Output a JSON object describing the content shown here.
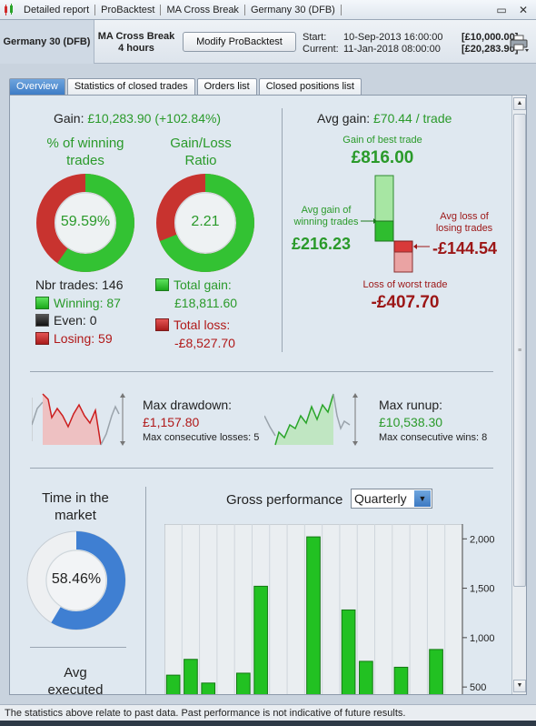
{
  "titlebar": {
    "segments": [
      "Detailed report",
      "ProBacktest",
      "MA Cross Break",
      "Germany 30 (DFB)"
    ],
    "icons": {
      "app": "candlestick-chart-icon",
      "minimize": "minimize-icon",
      "close": "close-icon"
    }
  },
  "header": {
    "instrument": "Germany 30 (DFB)",
    "strategy_name": "MA Cross Break",
    "strategy_timeframe": "4 hours",
    "modify_button": "Modify ProBacktest",
    "start_label": "Start:",
    "start_date": "10-Sep-2013 16:00:00",
    "start_amount": "[£10,000.00]",
    "current_label": "Current:",
    "current_date": "11-Jan-2018 08:00:00",
    "current_amount": "[£20,283.90]",
    "print_icon": "printer-icon"
  },
  "tabs": [
    {
      "label": "Overview",
      "active": true
    },
    {
      "label": "Statistics of closed trades",
      "active": false
    },
    {
      "label": "Orders list",
      "active": false
    },
    {
      "label": "Closed positions list",
      "active": false
    }
  ],
  "overview": {
    "gain_label": "Gain:",
    "gain_value": "£10,283.90 (+102.84%)",
    "winning_title_1": "% of winning",
    "winning_title_2": "trades",
    "winning_pct_text": "59.59%",
    "winning_pct": 59.59,
    "ratio_title_1": "Gain/Loss",
    "ratio_title_2": "Ratio",
    "ratio_text": "2.21",
    "ratio_gain_fraction": 0.688,
    "nbr_trades": "Nbr trades: 146",
    "winning": "Winning: 87",
    "even": "Even: 0",
    "losing": "Losing: 59",
    "total_gain_label": "Total gain:",
    "total_gain_value": "£18,811.60",
    "total_loss_label": "Total loss:",
    "total_loss_value": "-£8,527.70",
    "avg_gain_label": "Avg gain:",
    "avg_gain_value": "£70.44 / trade",
    "best_trade_label": "Gain of best trade",
    "best_trade_value": "£816.00",
    "avg_winning_label_1": "Avg gain of",
    "avg_winning_label_2": "winning trades",
    "avg_winning_value": "£216.23",
    "avg_losing_label_1": "Avg loss of",
    "avg_losing_label_2": "losing trades",
    "avg_losing_value": "-£144.54",
    "worst_trade_label": "Loss of worst trade",
    "worst_trade_value": "-£407.70",
    "max_drawdown_label": "Max drawdown:",
    "max_drawdown_value": "£1,157.80",
    "max_consec_losses": "Max consecutive losses: 5",
    "max_runup_label": "Max runup:",
    "max_runup_value": "£10,538.30",
    "max_consec_wins": "Max consecutive wins: 8",
    "time_market_title_1": "Time in the",
    "time_market_title_2": "market",
    "time_market_pct_text": "58.46%",
    "time_market_pct": 58.46,
    "avg_executed_1": "Avg",
    "avg_executed_2": "executed",
    "gross_performance_title": "Gross performance",
    "period_select": "Quarterly"
  },
  "colors": {
    "gain_green": "#2a9a2a",
    "loss_red": "#b01818",
    "tab_active": "#4a88cf",
    "panel_bg": "#dfe8f0"
  },
  "chart_data": {
    "type": "bar",
    "title": "Gross performance",
    "yticks": [
      500,
      1000,
      1500,
      2000
    ],
    "ytick_labels": [
      "500",
      "1,000",
      "1,500",
      "2,000"
    ],
    "ylim": [
      400,
      2150
    ],
    "values": [
      620,
      780,
      540,
      640,
      1520,
      2020,
      1280,
      760,
      700,
      880
    ],
    "bar_slots": [
      0,
      1,
      2,
      4,
      5,
      8,
      10,
      11,
      13,
      15
    ],
    "slot_count": 17,
    "grid": true
  },
  "footer": {
    "disclaimer": "The statistics above relate to past data. Past performance is not indicative of future results."
  }
}
